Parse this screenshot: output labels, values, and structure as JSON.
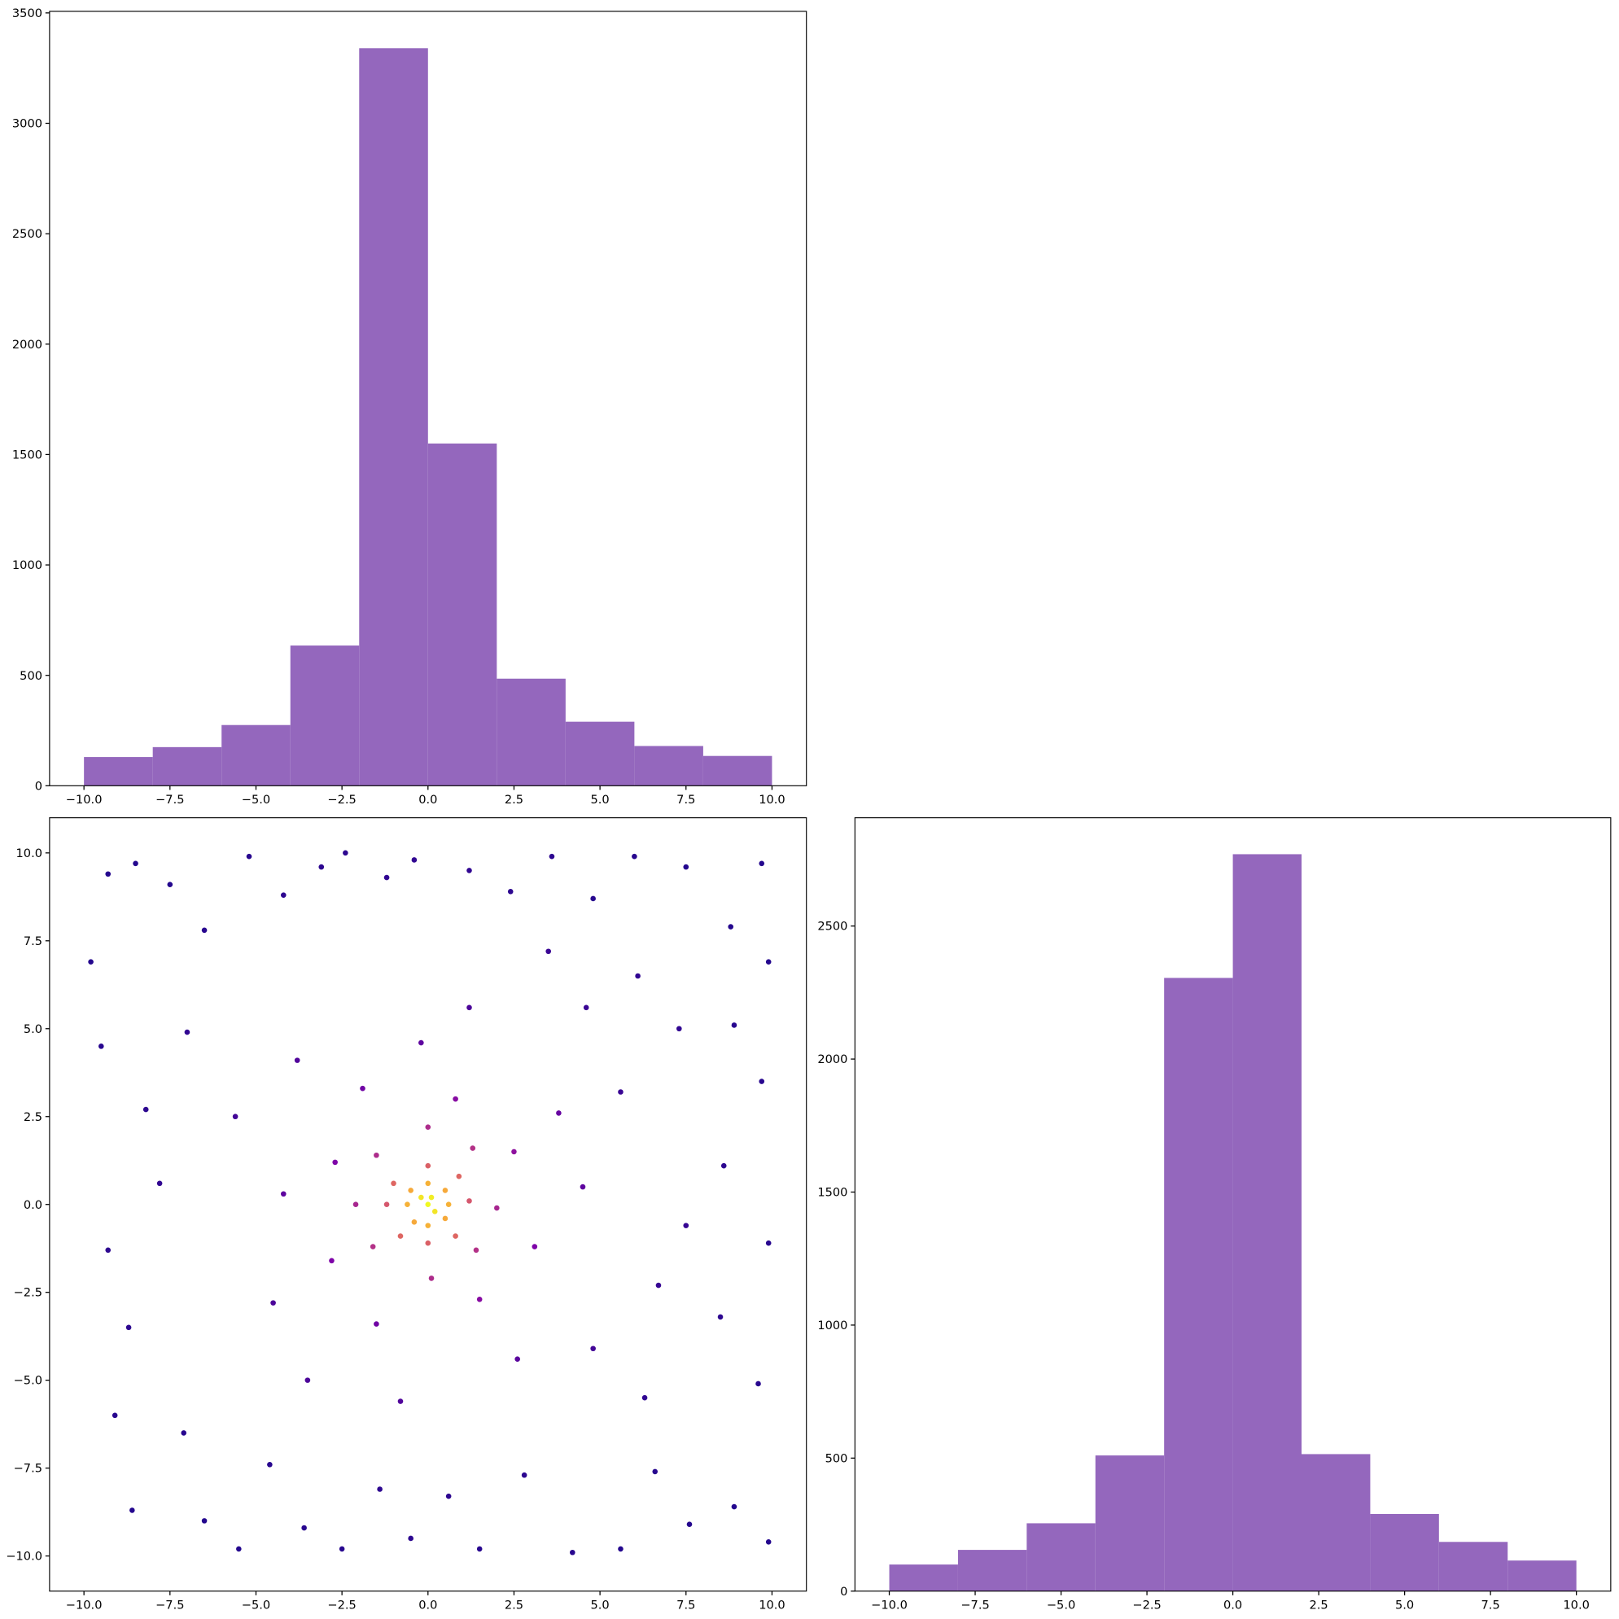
{
  "chart_data": [
    {
      "type": "histogram",
      "color": "#9467bd",
      "bins": [
        -10,
        -8,
        -6,
        -4,
        -2,
        0,
        2,
        4,
        6,
        8,
        10
      ],
      "values": [
        130,
        175,
        275,
        635,
        3340,
        1550,
        485,
        290,
        180,
        135
      ],
      "xlim": [
        -11,
        11
      ],
      "ylim": [
        0,
        3507
      ],
      "xticks": [
        {
          "value": -10,
          "label": "−10.0"
        },
        {
          "value": -7.5,
          "label": "−7.5"
        },
        {
          "value": -5,
          "label": "−5.0"
        },
        {
          "value": -2.5,
          "label": "−2.5"
        },
        {
          "value": 0,
          "label": "0.0"
        },
        {
          "value": 2.5,
          "label": "2.5"
        },
        {
          "value": 5,
          "label": "5.0"
        },
        {
          "value": 7.5,
          "label": "7.5"
        },
        {
          "value": 10,
          "label": "10.0"
        }
      ],
      "yticks": [
        0,
        500,
        1000,
        1500,
        2000,
        2500,
        3000,
        3500
      ]
    },
    {
      "type": "scatter",
      "cmap": "plasma",
      "x": [
        -9.8,
        -9.3,
        -8.5,
        -7.5,
        -6.5,
        -5.2,
        -4.2,
        -3.1,
        -2.4,
        -1.2,
        -0.4,
        1.2,
        2.4,
        3.6,
        4.8,
        6.0,
        7.5,
        8.8,
        9.7,
        9.9,
        -9.5,
        -8.2,
        -7.0,
        -9.3,
        -8.7,
        -7.8,
        -9.1,
        -8.6,
        -7.1,
        -6.5,
        -5.5,
        -4.6,
        -3.6,
        -2.5,
        -1.4,
        -0.5,
        0.6,
        1.5,
        2.8,
        4.2,
        5.6,
        6.6,
        7.6,
        8.9,
        9.9,
        9.6,
        8.5,
        9.9,
        8.6,
        9.7,
        7.3,
        8.9,
        6.1,
        5.6,
        4.6,
        3.5,
        6.7,
        6.3,
        4.8,
        7.5,
        -5.6,
        -4.5,
        -3.8,
        -3.5,
        -2.7,
        -2.8,
        -1.9,
        -1.5,
        -0.2,
        0.8,
        1.5,
        2.5,
        3.1,
        3.8,
        2.6,
        -0.8,
        1.2,
        -4.2,
        4.5,
        -1.5,
        1.3,
        -1.6,
        1.4,
        0.0,
        0.1,
        -2.1,
        2.0,
        -1.0,
        0.9,
        -0.8,
        0.8,
        -1.2,
        1.2,
        0,
        0,
        -0.5,
        0.5,
        -0.4,
        0.5,
        0,
        0,
        -0.6,
        0.6,
        -0.2,
        0.2,
        0.1,
        0
      ],
      "y": [
        6.9,
        9.4,
        9.7,
        9.1,
        7.8,
        9.9,
        8.8,
        9.6,
        10.0,
        9.3,
        9.8,
        9.5,
        8.9,
        9.9,
        8.7,
        9.9,
        9.6,
        7.9,
        9.7,
        6.9,
        4.5,
        2.7,
        4.9,
        -1.3,
        -3.5,
        0.6,
        -6.0,
        -8.7,
        -6.5,
        -9.0,
        -9.8,
        -7.4,
        -9.2,
        -9.8,
        -8.1,
        -9.5,
        -8.3,
        -9.8,
        -7.7,
        -9.9,
        -9.8,
        -7.6,
        -9.1,
        -8.6,
        -9.6,
        -5.1,
        -3.2,
        -1.1,
        1.1,
        3.5,
        5.0,
        5.1,
        6.5,
        3.2,
        5.6,
        7.2,
        -2.3,
        -5.5,
        -4.1,
        -0.6,
        2.5,
        -2.8,
        4.1,
        -5.0,
        1.2,
        -1.6,
        3.3,
        -3.4,
        4.6,
        3.0,
        -2.7,
        1.5,
        -1.2,
        2.6,
        -4.4,
        -5.6,
        5.6,
        0.3,
        0.5,
        1.4,
        1.6,
        -1.2,
        -1.3,
        2.2,
        -2.1,
        0.0,
        -0.1,
        0.6,
        0.8,
        -0.9,
        -0.9,
        0,
        0.1,
        1.1,
        -1.1,
        0.4,
        0.4,
        -0.5,
        -0.4,
        0.6,
        -0.6,
        0,
        0,
        0.2,
        -0.2,
        0.2,
        0
      ],
      "c": [
        0.05,
        0.05,
        0.05,
        0.05,
        0.06,
        0.06,
        0.07,
        0.07,
        0.07,
        0.08,
        0.08,
        0.08,
        0.07,
        0.07,
        0.06,
        0.06,
        0.05,
        0.05,
        0.05,
        0.05,
        0.06,
        0.07,
        0.08,
        0.07,
        0.07,
        0.08,
        0.06,
        0.05,
        0.06,
        0.05,
        0.05,
        0.06,
        0.06,
        0.06,
        0.07,
        0.07,
        0.07,
        0.06,
        0.07,
        0.06,
        0.05,
        0.06,
        0.05,
        0.05,
        0.05,
        0.06,
        0.07,
        0.06,
        0.07,
        0.06,
        0.08,
        0.06,
        0.08,
        0.1,
        0.1,
        0.1,
        0.09,
        0.08,
        0.12,
        0.09,
        0.12,
        0.14,
        0.15,
        0.14,
        0.25,
        0.25,
        0.22,
        0.22,
        0.18,
        0.28,
        0.28,
        0.3,
        0.25,
        0.2,
        0.17,
        0.15,
        0.14,
        0.18,
        0.18,
        0.4,
        0.42,
        0.42,
        0.42,
        0.4,
        0.4,
        0.38,
        0.38,
        0.6,
        0.6,
        0.6,
        0.6,
        0.55,
        0.55,
        0.58,
        0.58,
        0.8,
        0.8,
        0.8,
        0.8,
        0.82,
        0.82,
        0.82,
        0.82,
        0.95,
        0.95,
        0.97,
        1
      ],
      "xlim": [
        -11,
        11
      ],
      "ylim": [
        -11,
        11
      ],
      "xticks": [
        {
          "value": -10,
          "label": "−10.0"
        },
        {
          "value": -7.5,
          "label": "−7.5"
        },
        {
          "value": -5,
          "label": "−5.0"
        },
        {
          "value": -2.5,
          "label": "−2.5"
        },
        {
          "value": 0,
          "label": "0.0"
        },
        {
          "value": 2.5,
          "label": "2.5"
        },
        {
          "value": 5,
          "label": "5.0"
        },
        {
          "value": 7.5,
          "label": "7.5"
        },
        {
          "value": 10,
          "label": "10.0"
        }
      ],
      "yticks": [
        {
          "value": -10,
          "label": "−10.0"
        },
        {
          "value": -7.5,
          "label": "−7.5"
        },
        {
          "value": -5,
          "label": "−5.0"
        },
        {
          "value": -2.5,
          "label": "−2.5"
        },
        {
          "value": 0,
          "label": "0.0"
        },
        {
          "value": 2.5,
          "label": "2.5"
        },
        {
          "value": 5,
          "label": "5.0"
        },
        {
          "value": 7.5,
          "label": "7.5"
        },
        {
          "value": 10,
          "label": "10.0"
        }
      ]
    },
    {
      "type": "histogram",
      "color": "#9467bd",
      "bins": [
        -10,
        -8,
        -6,
        -4,
        -2,
        0,
        2,
        4,
        6,
        8,
        10
      ],
      "values": [
        100,
        155,
        255,
        510,
        2305,
        2770,
        515,
        290,
        185,
        115
      ],
      "xlim": [
        -11,
        11
      ],
      "ylim": [
        0,
        2907
      ],
      "xticks": [
        {
          "value": -10,
          "label": "−10.0"
        },
        {
          "value": -7.5,
          "label": "−7.5"
        },
        {
          "value": -5,
          "label": "−5.0"
        },
        {
          "value": -2.5,
          "label": "−2.5"
        },
        {
          "value": 0,
          "label": "0.0"
        },
        {
          "value": 2.5,
          "label": "2.5"
        },
        {
          "value": 5,
          "label": "5.0"
        },
        {
          "value": 7.5,
          "label": "7.5"
        },
        {
          "value": 10,
          "label": "10.0"
        }
      ],
      "yticks": [
        0,
        500,
        1000,
        1500,
        2000,
        2500
      ]
    }
  ]
}
